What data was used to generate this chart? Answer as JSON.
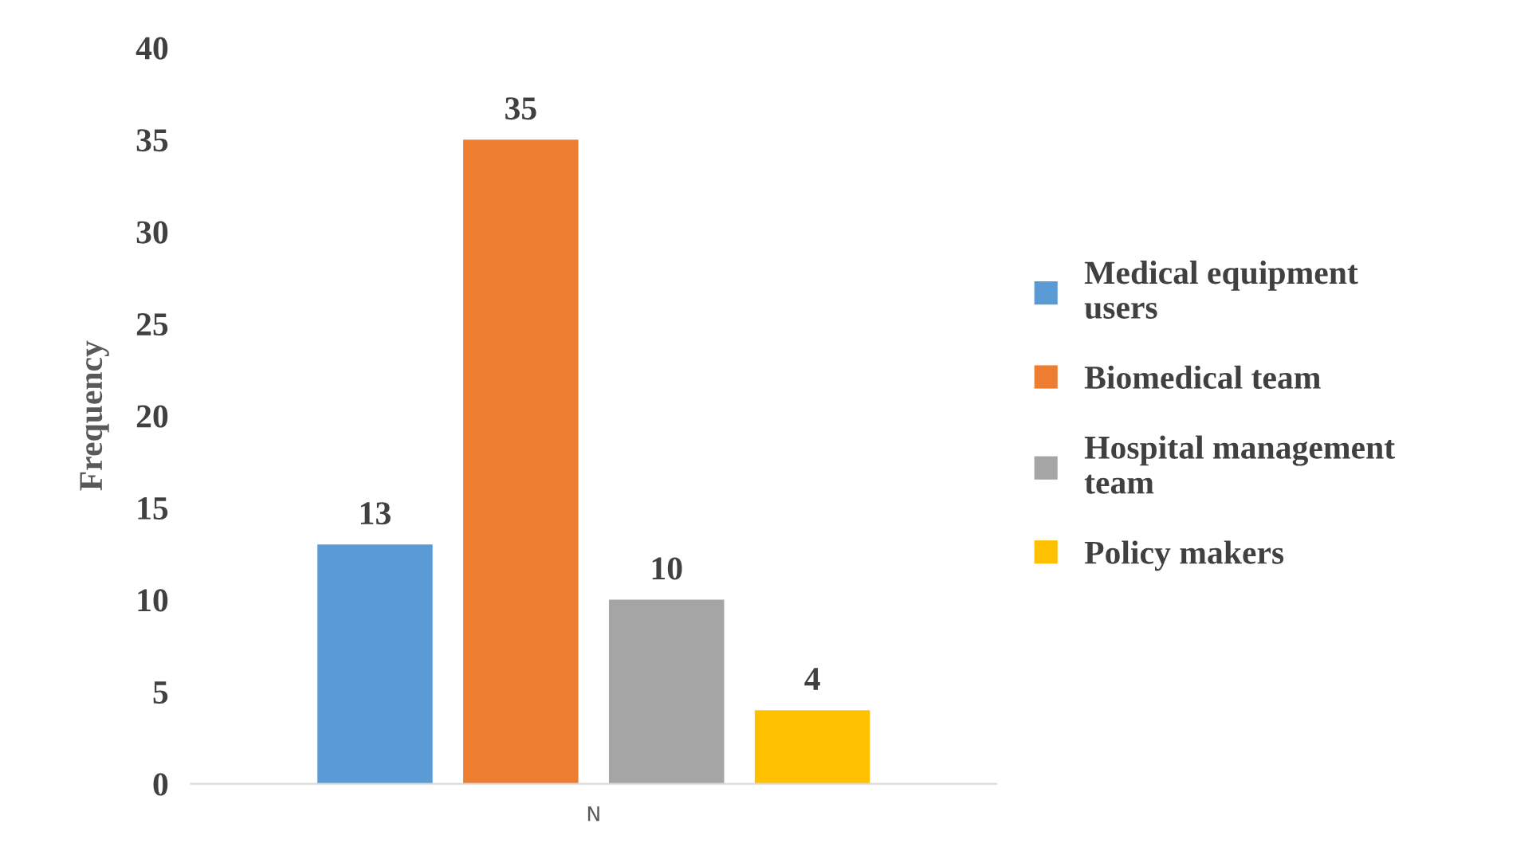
{
  "chart_data": {
    "type": "bar",
    "ylabel": "Frequency",
    "categories": [
      "N"
    ],
    "series": [
      {
        "name": "Medical equipment users",
        "color": "#5b9bd5",
        "values": [
          13
        ]
      },
      {
        "name": "Biomedical team",
        "color": "#ed7d31",
        "values": [
          35
        ]
      },
      {
        "name": "Hospital management team",
        "color": "#a5a5a5",
        "values": [
          10
        ]
      },
      {
        "name": "Policy makers",
        "color": "#ffc000",
        "values": [
          4
        ]
      }
    ],
    "ylim": [
      0,
      40
    ],
    "yticks": [
      0,
      5,
      10,
      15,
      20,
      25,
      30,
      35,
      40
    ],
    "grid": false,
    "legend": "right",
    "data_labels": true
  }
}
